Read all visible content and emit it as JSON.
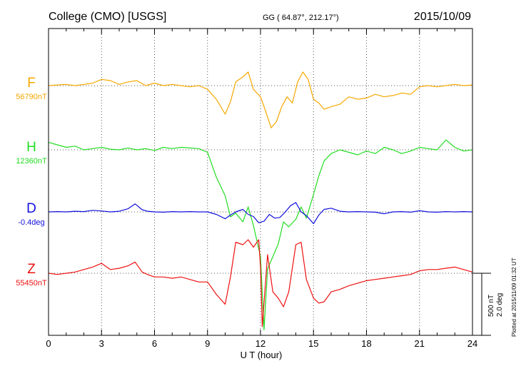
{
  "header": {
    "station": "College (CMO)  [USGS]",
    "coords": "GG ( 64.87°, 212.17°)",
    "date": "2015/10/09"
  },
  "scale_note": {
    "line1": "500 nT",
    "line2": "2.0 deg"
  },
  "plotted_note": "Plotted at 2015/11/09 01:32 UT",
  "chart_data": {
    "type": "line",
    "title": "College (CMO)  [USGS]",
    "xlabel": "U T (hour)",
    "ylabel": "",
    "xlim": [
      0,
      24
    ],
    "x_ticks": [
      0,
      3,
      6,
      9,
      12,
      15,
      18,
      21,
      24
    ],
    "x_tick_labels": [
      "0",
      "3",
      "6",
      "9",
      "12",
      "15",
      "18",
      "21",
      "24"
    ],
    "grid": true,
    "units_per_scale_bar": {
      "nT": 500,
      "deg": 2.0
    },
    "series": [
      {
        "name": "F",
        "baseline_label": "56790nT",
        "color": "#f5a800",
        "baseline": 56790,
        "unit": "nT",
        "x": [
          0,
          0.5,
          1,
          1.5,
          2,
          2.5,
          3,
          3.5,
          4,
          4.5,
          5,
          5.5,
          6,
          6.5,
          7,
          7.5,
          8,
          8.5,
          9,
          9.5,
          10,
          10.3,
          10.6,
          11,
          11.3,
          11.6,
          12,
          12.3,
          12.6,
          12.9,
          13.2,
          13.5,
          13.8,
          14.1,
          14.4,
          14.7,
          15,
          15.3,
          15.6,
          16,
          16.5,
          17,
          17.5,
          18,
          18.5,
          19,
          19.5,
          20,
          20.5,
          21,
          21.5,
          22,
          22.5,
          23,
          23.5,
          24
        ],
        "y": [
          56790,
          56795,
          56800,
          56790,
          56800,
          56810,
          56840,
          56830,
          56800,
          56820,
          56830,
          56790,
          56810,
          56790,
          56800,
          56790,
          56780,
          56790,
          56760,
          56680,
          56560,
          56660,
          56820,
          56860,
          56900,
          56760,
          56700,
          56580,
          56450,
          56500,
          56620,
          56700,
          56650,
          56820,
          56900,
          56840,
          56680,
          56650,
          56600,
          56620,
          56640,
          56700,
          56680,
          56690,
          56720,
          56700,
          56710,
          56730,
          56720,
          56780,
          56790,
          56780,
          56790,
          56800,
          56790,
          56795
        ]
      },
      {
        "name": "H",
        "baseline_label": "12360nT",
        "color": "#22dd22",
        "baseline": 12360,
        "unit": "nT",
        "x": [
          0,
          0.5,
          1,
          1.5,
          2,
          2.5,
          3,
          3.5,
          4,
          4.5,
          5,
          5.5,
          6,
          6.5,
          7,
          7.5,
          8,
          8.5,
          9,
          9.5,
          10,
          10.3,
          10.6,
          11,
          11.3,
          11.6,
          12,
          12.2,
          12.4,
          12.7,
          13,
          13.3,
          13.6,
          14,
          14.3,
          14.6,
          15,
          15.3,
          15.6,
          16,
          16.5,
          17,
          17.5,
          18,
          18.5,
          19,
          19.5,
          20,
          20.5,
          21,
          21.5,
          22,
          22.5,
          23,
          23.5,
          24
        ],
        "y": [
          12420,
          12400,
          12380,
          12390,
          12360,
          12370,
          12380,
          12365,
          12360,
          12375,
          12360,
          12370,
          12355,
          12380,
          12370,
          12380,
          12375,
          12370,
          12340,
          12140,
          11990,
          11820,
          11850,
          11780,
          11900,
          11750,
          11500,
          10910,
          11400,
          11500,
          11600,
          11780,
          11740,
          11800,
          11900,
          11810,
          12000,
          12150,
          12270,
          12330,
          12360,
          12340,
          12320,
          12350,
          12330,
          12380,
          12360,
          12330,
          12350,
          12380,
          12370,
          12360,
          12440,
          12380,
          12350,
          12360
        ]
      },
      {
        "name": "D",
        "baseline_label": "-0.4deg",
        "color": "#1010dd",
        "baseline": -0.4,
        "unit": "deg",
        "x": [
          0,
          0.5,
          1,
          1.5,
          2,
          2.5,
          3,
          3.5,
          4,
          4.5,
          4.9,
          5.3,
          5.6,
          6,
          6.5,
          7,
          7.5,
          8,
          8.5,
          9,
          9.5,
          10,
          10.3,
          10.6,
          11,
          11.3,
          11.6,
          11.9,
          12.2,
          12.5,
          12.8,
          13.1,
          13.4,
          13.7,
          14,
          14.3,
          14.6,
          15,
          15.3,
          15.6,
          16,
          16.5,
          17,
          17.5,
          18,
          18.5,
          19,
          19.5,
          20,
          20.5,
          21,
          21.5,
          22,
          22.5,
          23,
          23.5,
          24
        ],
        "y": [
          -0.4,
          -0.39,
          -0.4,
          -0.38,
          -0.39,
          -0.35,
          -0.37,
          -0.4,
          -0.38,
          -0.3,
          -0.14,
          -0.33,
          -0.38,
          -0.4,
          -0.41,
          -0.39,
          -0.4,
          -0.39,
          -0.4,
          -0.4,
          -0.48,
          -0.62,
          -0.5,
          -0.4,
          -0.32,
          -0.48,
          -0.55,
          -0.75,
          -0.7,
          -0.48,
          -0.6,
          -0.58,
          -0.4,
          -0.2,
          -0.1,
          -0.4,
          -0.52,
          -0.78,
          -0.5,
          -0.32,
          -0.28,
          -0.38,
          -0.4,
          -0.39,
          -0.4,
          -0.41,
          -0.46,
          -0.4,
          -0.39,
          -0.41,
          -0.36,
          -0.4,
          -0.41,
          -0.39,
          -0.4,
          -0.39,
          -0.4
        ]
      },
      {
        "name": "Z",
        "baseline_label": "55450nT",
        "color": "#ee1111",
        "baseline": 55450,
        "unit": "nT",
        "x": [
          0,
          0.5,
          1,
          1.5,
          2,
          2.5,
          3,
          3.5,
          4,
          4.5,
          4.9,
          5.3,
          5.6,
          6,
          6.5,
          7,
          7.5,
          8,
          8.5,
          9,
          9.5,
          10,
          10.3,
          10.6,
          11,
          11.3,
          11.6,
          11.9,
          12,
          12.1,
          12.4,
          12.7,
          13,
          13.3,
          13.6,
          14,
          14.3,
          14.6,
          15,
          15.3,
          15.6,
          16,
          16.5,
          17,
          17.5,
          18,
          18.5,
          19,
          19.5,
          20,
          20.5,
          21,
          21.5,
          22,
          22.5,
          23,
          23.5,
          24
        ],
        "y": [
          55450,
          55440,
          55450,
          55460,
          55480,
          55500,
          55530,
          55480,
          55490,
          55510,
          55540,
          55460,
          55440,
          55420,
          55420,
          55410,
          55420,
          55400,
          55380,
          55380,
          55280,
          55200,
          55420,
          55700,
          55680,
          55720,
          55660,
          55720,
          55500,
          55020,
          55600,
          55300,
          55250,
          55180,
          55300,
          55680,
          55700,
          55400,
          55250,
          55210,
          55220,
          55300,
          55320,
          55350,
          55370,
          55390,
          55400,
          55410,
          55420,
          55430,
          55440,
          55470,
          55480,
          55480,
          55490,
          55500,
          55480,
          55460
        ]
      }
    ]
  }
}
